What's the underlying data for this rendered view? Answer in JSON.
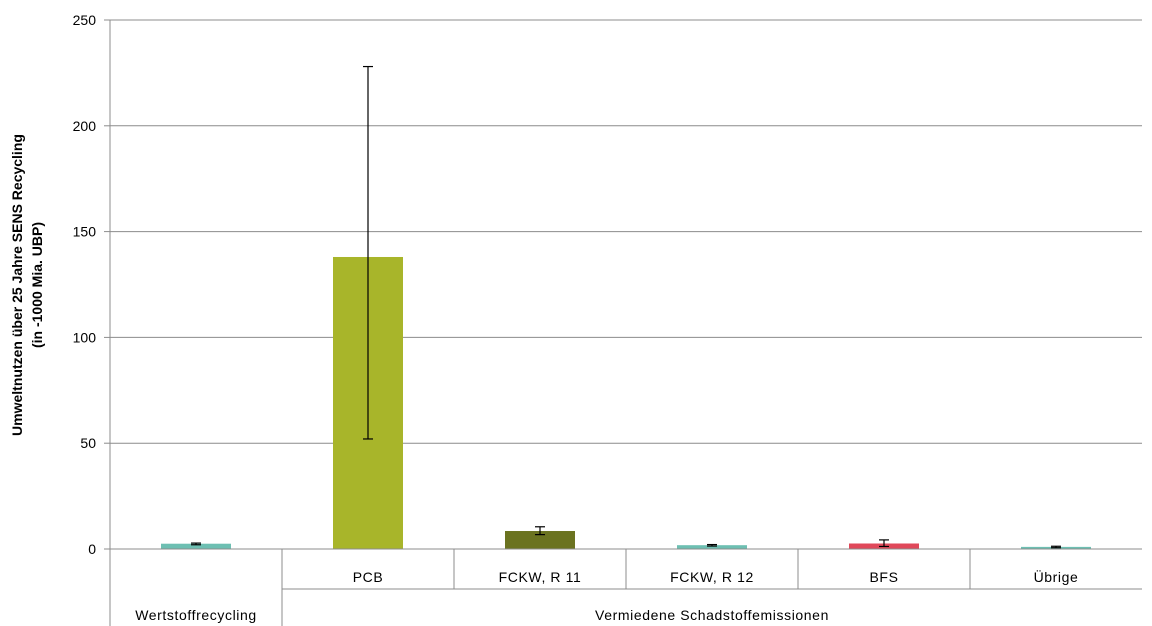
{
  "chart_data": {
    "type": "bar",
    "ylabel_line1": "Umweltnutzen über 25 Jahre SENS Recycling",
    "ylabel_line2": "(in -1000 Mia. UBP)",
    "ylim": [
      0,
      250
    ],
    "yticks": [
      "0",
      "50",
      "100",
      "150",
      "200",
      "250"
    ],
    "grid": true,
    "groups": [
      "Wertstoffrecycling",
      "Vermiedene Schadstoffemissionen"
    ],
    "categories": [
      "",
      "PCB",
      "FCKW, R 11",
      "FCKW, R 12",
      "BFS",
      "Übrige"
    ],
    "values": [
      2.5,
      138,
      8.5,
      1.8,
      2.6,
      1.0
    ],
    "error_low": [
      2.0,
      52,
      6.8,
      1.4,
      1.2,
      0.6
    ],
    "error_high": [
      2.8,
      228,
      10.5,
      2.1,
      4.3,
      1.3
    ],
    "colors": [
      "#6dbfb2",
      "#a8b52a",
      "#6b7320",
      "#6dbfb2",
      "#e0485a",
      "#6dbfb2"
    ]
  }
}
